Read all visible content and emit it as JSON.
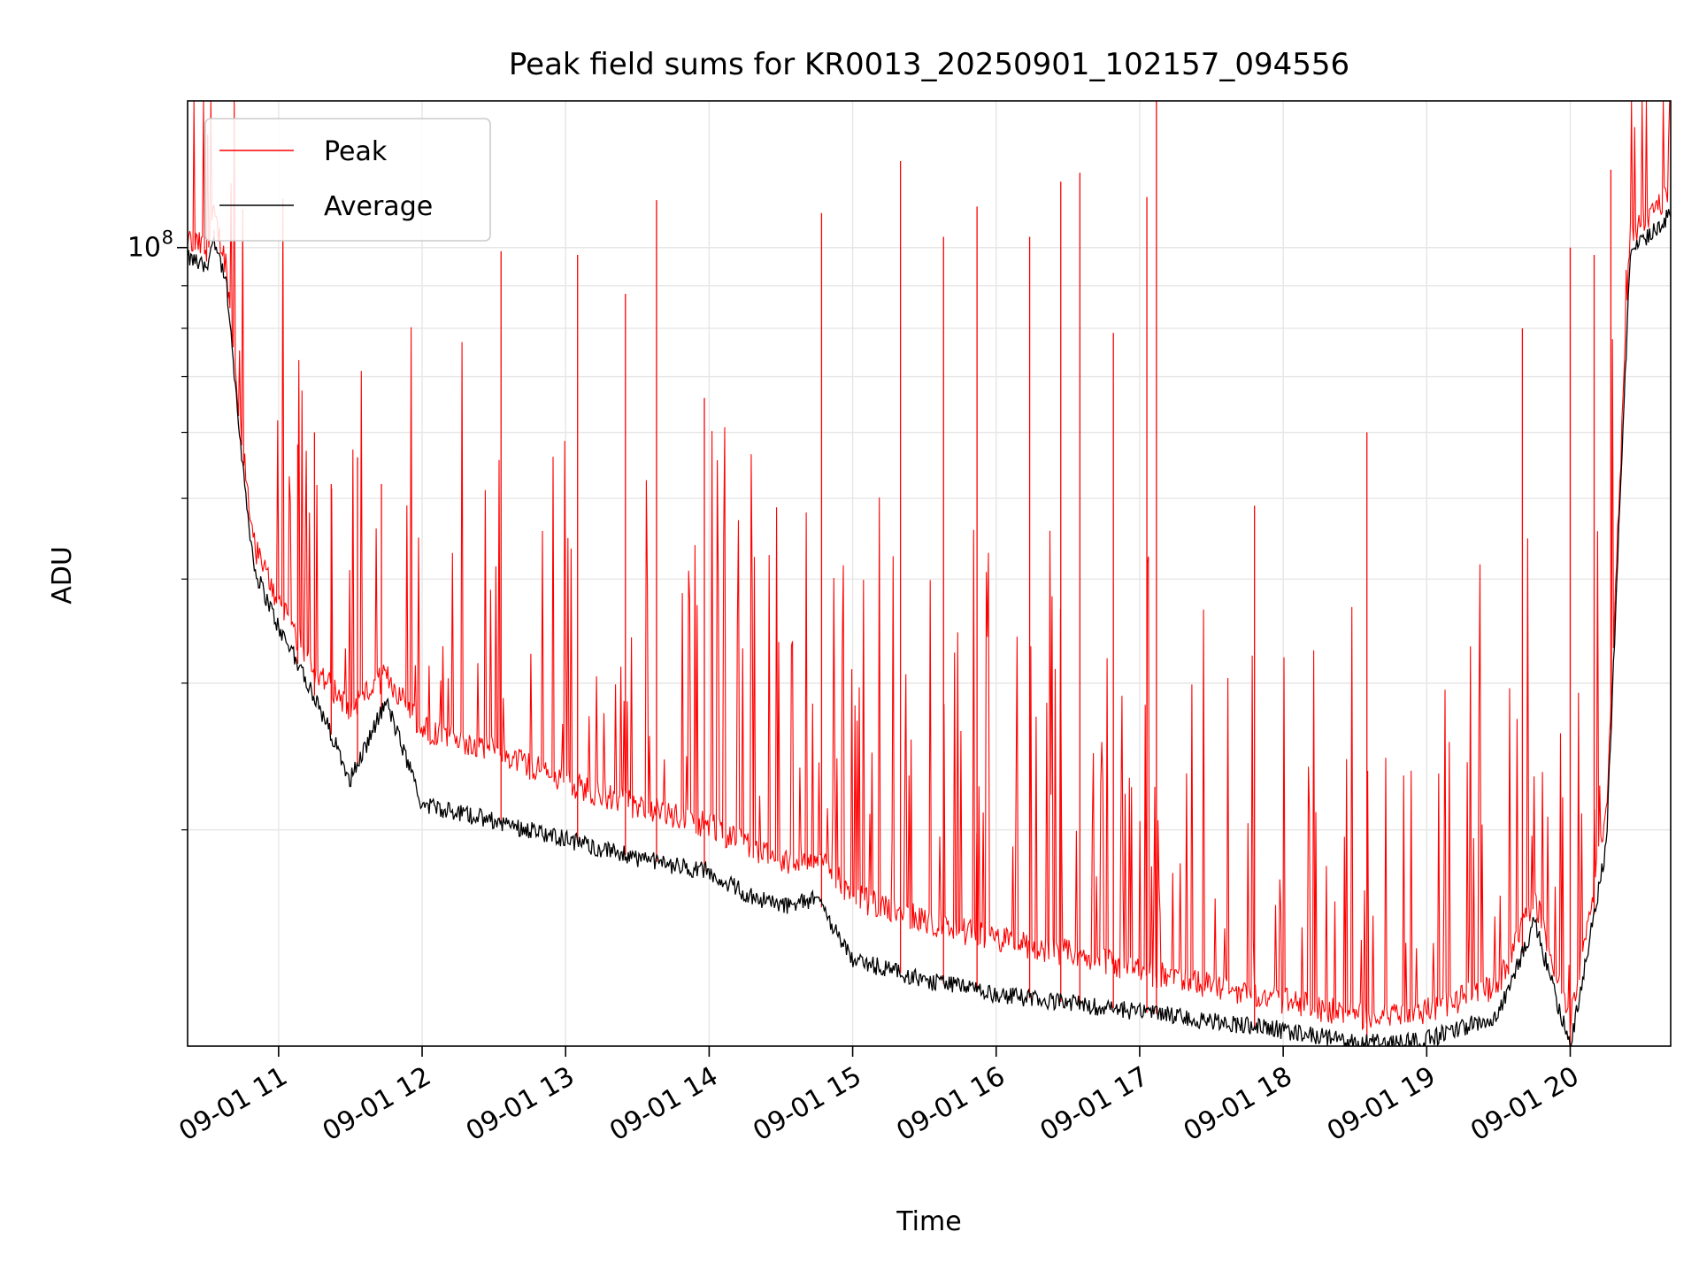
{
  "chart_data": {
    "type": "line",
    "title": "Peak field sums for KR0013_20250901_102157_094556",
    "xlabel": "Time",
    "ylabel": "ADU",
    "yscale": "log",
    "grid": true,
    "legend_position": "upper-left",
    "x_range": [
      "2025-09-01 10:21:57",
      "2025-09-01 20:42:00"
    ],
    "ylim": [
      11000000,
      150000000
    ],
    "x_tick_labels": [
      "09-01 11",
      "09-01 12",
      "09-01 13",
      "09-01 14",
      "09-01 15",
      "09-01 16",
      "09-01 17",
      "09-01 18",
      "09-01 19",
      "09-01 20"
    ],
    "x_tick_times": [
      "2025-09-01 11:00",
      "2025-09-01 12:00",
      "2025-09-01 13:00",
      "2025-09-01 14:00",
      "2025-09-01 15:00",
      "2025-09-01 16:00",
      "2025-09-01 17:00",
      "2025-09-01 18:00",
      "2025-09-01 19:00",
      "2025-09-01 20:00"
    ],
    "y_major_tick": {
      "value": 100000000,
      "label_base": "10",
      "label_exp": "8"
    },
    "series": [
      {
        "name": "Peak",
        "color": "#ff0000",
        "x": [
          "2025-09-01 10:22",
          "2025-09-01 10:30",
          "2025-09-01 10:33",
          "2025-09-01 10:38",
          "2025-09-01 10:45",
          "2025-09-01 10:50",
          "2025-09-01 11:00",
          "2025-09-01 11:15",
          "2025-09-01 11:30",
          "2025-09-01 11:45",
          "2025-09-01 12:00",
          "2025-09-01 12:30",
          "2025-09-01 13:00",
          "2025-09-01 13:30",
          "2025-09-01 14:00",
          "2025-09-01 14:15",
          "2025-09-01 14:30",
          "2025-09-01 14:45",
          "2025-09-01 15:00",
          "2025-09-01 15:30",
          "2025-09-01 16:00",
          "2025-09-01 16:30",
          "2025-09-01 17:00",
          "2025-09-01 17:30",
          "2025-09-01 18:00",
          "2025-09-01 18:30",
          "2025-09-01 19:00",
          "2025-09-01 19:30",
          "2025-09-01 19:45",
          "2025-09-01 20:00",
          "2025-09-01 20:15",
          "2025-09-01 20:25",
          "2025-09-01 20:42"
        ],
        "y": [
          98000000,
          96000000,
          105000000,
          92000000,
          55000000,
          42000000,
          36000000,
          30000000,
          27000000,
          29500000,
          25500000,
          24000000,
          22000000,
          20500000,
          19500000,
          18500000,
          17500000,
          18000000,
          16000000,
          15000000,
          14200000,
          13700000,
          13000000,
          12500000,
          12000000,
          11500000,
          11700000,
          12500000,
          16000000,
          11300000,
          20000000,
          100000000,
          112000000
        ],
        "spikes": [
          {
            "t": "2025-09-01 10:33",
            "y": 105000000
          },
          {
            "t": "2025-09-01 11:08",
            "y": 58000000
          },
          {
            "t": "2025-09-01 11:15",
            "y": 60000000
          },
          {
            "t": "2025-09-01 11:22",
            "y": 52000000
          },
          {
            "t": "2025-09-01 11:33",
            "y": 56000000
          },
          {
            "t": "2025-09-01 11:43",
            "y": 52000000
          },
          {
            "t": "2025-09-01 12:33",
            "y": 99000000
          },
          {
            "t": "2025-09-01 13:05",
            "y": 98000000
          },
          {
            "t": "2025-09-01 13:25",
            "y": 88000000
          },
          {
            "t": "2025-09-01 13:38",
            "y": 114000000
          },
          {
            "t": "2025-09-01 13:58",
            "y": 66000000
          },
          {
            "t": "2025-09-01 14:47",
            "y": 110000000
          },
          {
            "t": "2025-09-01 15:20",
            "y": 127000000
          },
          {
            "t": "2025-09-01 15:38",
            "y": 103000000
          },
          {
            "t": "2025-09-01 15:52",
            "y": 112000000
          },
          {
            "t": "2025-09-01 16:14",
            "y": 103000000
          },
          {
            "t": "2025-09-01 16:27",
            "y": 120000000
          },
          {
            "t": "2025-09-01 16:35",
            "y": 123000000
          },
          {
            "t": "2025-09-01 16:49",
            "y": 79000000
          },
          {
            "t": "2025-09-01 17:03",
            "y": 115000000
          },
          {
            "t": "2025-09-01 17:07",
            "y": 150000000
          },
          {
            "t": "2025-09-01 17:48",
            "y": 49000000
          },
          {
            "t": "2025-09-01 18:35",
            "y": 60000000
          },
          {
            "t": "2025-09-01 19:40",
            "y": 80000000
          },
          {
            "t": "2025-09-01 20:00",
            "y": 100000000
          },
          {
            "t": "2025-09-01 20:10",
            "y": 98000000
          },
          {
            "t": "2025-09-01 20:17",
            "y": 124000000
          }
        ]
      },
      {
        "name": "Average",
        "color": "#000000",
        "x": [
          "2025-09-01 10:22",
          "2025-09-01 10:30",
          "2025-09-01 10:33",
          "2025-09-01 10:38",
          "2025-09-01 10:45",
          "2025-09-01 10:50",
          "2025-09-01 11:00",
          "2025-09-01 11:15",
          "2025-09-01 11:30",
          "2025-09-01 11:45",
          "2025-09-01 12:00",
          "2025-09-01 12:30",
          "2025-09-01 13:00",
          "2025-09-01 13:30",
          "2025-09-01 14:00",
          "2025-09-01 14:15",
          "2025-09-01 14:30",
          "2025-09-01 14:45",
          "2025-09-01 15:00",
          "2025-09-01 15:30",
          "2025-09-01 16:00",
          "2025-09-01 16:30",
          "2025-09-01 17:00",
          "2025-09-01 17:30",
          "2025-09-01 18:00",
          "2025-09-01 18:30",
          "2025-09-01 19:00",
          "2025-09-01 19:30",
          "2025-09-01 19:45",
          "2025-09-01 20:00",
          "2025-09-01 20:15",
          "2025-09-01 20:25",
          "2025-09-01 20:42"
        ],
        "y": [
          97000000,
          95000000,
          103000000,
          91000000,
          54000000,
          41000000,
          35000000,
          29000000,
          23000000,
          28500000,
          21500000,
          20500000,
          19500000,
          18500000,
          17800000,
          16800000,
          16200000,
          16500000,
          14000000,
          13200000,
          12700000,
          12400000,
          12100000,
          11800000,
          11500000,
          11100000,
          11200000,
          12000000,
          15500000,
          11000000,
          19000000,
          98000000,
          110000000
        ]
      }
    ]
  }
}
